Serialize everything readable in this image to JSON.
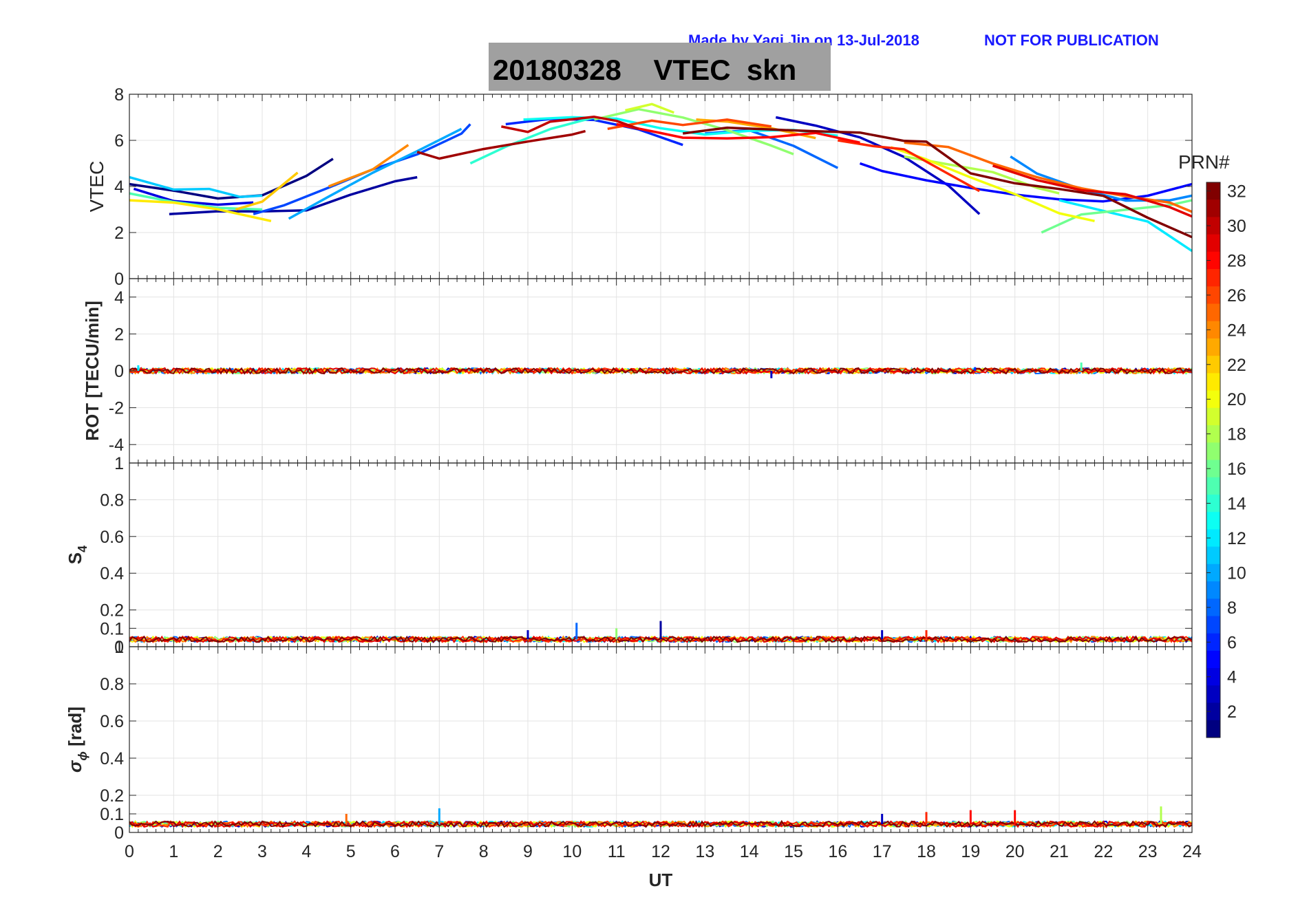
{
  "header": {
    "credit": "Made by Yaqi Jin on 13-Jul-2018",
    "notice": "NOT FOR PUBLICATION",
    "title": "20180328    VTEC  skn"
  },
  "x_label": "UT",
  "x_ticks": [
    "0",
    "1",
    "2",
    "3",
    "4",
    "5",
    "6",
    "7",
    "8",
    "9",
    "10",
    "11",
    "12",
    "13",
    "14",
    "15",
    "16",
    "17",
    "18",
    "19",
    "20",
    "21",
    "22",
    "23",
    "24"
  ],
  "colorbar": {
    "title": "PRN#",
    "ticks": [
      "2",
      "4",
      "6",
      "8",
      "10",
      "12",
      "14",
      "16",
      "18",
      "20",
      "22",
      "24",
      "26",
      "28",
      "30",
      "32"
    ],
    "range": [
      1,
      32
    ]
  },
  "panels": [
    {
      "id": "vtec",
      "ylabel": "VTEC",
      "ylim": [
        0,
        8
      ],
      "yticks": [
        "0",
        "2",
        "4",
        "6",
        "8"
      ]
    },
    {
      "id": "rot",
      "ylabel": "ROT [TECU/min]",
      "ylim": [
        -5,
        5
      ],
      "yticks": [
        "-4",
        "-2",
        "0",
        "2",
        "4"
      ]
    },
    {
      "id": "s4",
      "ylabel": "S",
      "ylabel_sub": "4",
      "ylim": [
        0,
        1
      ],
      "yticks": [
        "0",
        "0.1",
        "0.2",
        "0.4",
        "0.6",
        "0.8",
        "1"
      ]
    },
    {
      "id": "sigma",
      "ylabel": "σ",
      "ylabel_sub": "ϕ",
      "ylabel_suffix": " [rad]",
      "ylim": [
        0,
        1
      ],
      "yticks": [
        "0",
        "0.1",
        "0.2",
        "0.4",
        "0.6",
        "0.8",
        "1"
      ]
    }
  ],
  "chart_data": {
    "type": "line",
    "title": "20180328    VTEC  skn",
    "xlabel": "UT",
    "xlim": [
      0,
      24
    ],
    "grid": true,
    "colormap": "jet",
    "color_by": "PRN#",
    "colorbar_placement": "right",
    "panels": {
      "vtec": {
        "ylabel": "VTEC",
        "ylim": [
          0,
          8
        ],
        "series": [
          {
            "prn": 1,
            "x": [
              0,
              1,
              2,
              3,
              4,
              4.6
            ],
            "y": [
              4.1,
              3.8,
              3.5,
              3.6,
              4.4,
              5.2
            ]
          },
          {
            "prn": 2,
            "x": [
              0.9,
              2,
              3,
              4,
              5,
              6,
              6.5
            ],
            "y": [
              2.8,
              2.9,
              2.9,
              3.0,
              3.6,
              4.2,
              4.4
            ]
          },
          {
            "prn": 3,
            "x": [
              14.6,
              15.5,
              16.5,
              17.5,
              18.5,
              19.2
            ],
            "y": [
              7.0,
              6.6,
              6.1,
              5.3,
              4.0,
              2.8
            ]
          },
          {
            "prn": 4,
            "x": [
              0.1,
              1,
              2,
              2.8
            ],
            "y": [
              3.9,
              3.4,
              3.2,
              3.3
            ]
          },
          {
            "prn": 5,
            "x": [
              16.5,
              17,
              18,
              19,
              20,
              21,
              22,
              23,
              24
            ],
            "y": [
              5.0,
              4.7,
              4.3,
              3.9,
              3.6,
              3.4,
              3.4,
              3.6,
              4.1
            ]
          },
          {
            "prn": 6,
            "x": [
              8.5,
              9.5,
              10.5,
              11.5,
              12.5
            ],
            "y": [
              6.7,
              6.9,
              6.9,
              6.5,
              5.8
            ]
          },
          {
            "prn": 7,
            "x": [
              2.8,
              3.5,
              4.5,
              5.5,
              6.5,
              7.5,
              7.7
            ],
            "y": [
              2.8,
              3.2,
              3.9,
              4.7,
              5.4,
              6.3,
              6.7
            ]
          },
          {
            "prn": 8,
            "x": [
              13,
              14,
              15,
              16
            ],
            "y": [
              6.3,
              6.4,
              5.8,
              4.8
            ]
          },
          {
            "prn": 9,
            "x": [
              19.9,
              20.5,
              21.5,
              22.5,
              23.5,
              24
            ],
            "y": [
              5.3,
              4.6,
              3.9,
              3.4,
              3.4,
              3.6
            ]
          },
          {
            "prn": 10,
            "x": [
              3.6,
              4.5,
              5.5,
              6.5,
              7.5
            ],
            "y": [
              2.6,
              3.5,
              4.6,
              5.5,
              6.5
            ]
          },
          {
            "prn": 11,
            "x": [
              0,
              1,
              1.8,
              2.5,
              3.0
            ],
            "y": [
              4.4,
              3.9,
              3.9,
              3.5,
              3.6
            ]
          },
          {
            "prn": 12,
            "x": [
              21,
              22,
              23,
              24
            ],
            "y": [
              3.4,
              2.9,
              2.5,
              1.2
            ]
          },
          {
            "prn": 13,
            "x": [
              8.9,
              10,
              11,
              12,
              13,
              14,
              15,
              16
            ],
            "y": [
              6.9,
              7.0,
              6.9,
              6.5,
              6.3,
              6.4,
              6.5,
              6.2
            ]
          },
          {
            "prn": 14,
            "x": [
              7.7,
              8.5,
              9.5,
              10.5
            ],
            "y": [
              5.0,
              5.7,
              6.5,
              7.0
            ]
          },
          {
            "prn": 15,
            "x": [
              0,
              1,
              2,
              3
            ],
            "y": [
              3.7,
              3.3,
              3.1,
              3.0
            ]
          },
          {
            "prn": 16,
            "x": [
              20.6,
              21.5,
              22.5,
              23.5,
              24
            ],
            "y": [
              2.0,
              2.8,
              3.0,
              3.2,
              3.4
            ]
          },
          {
            "prn": 17,
            "x": [
              10.5,
              11.5,
              12.5,
              13.5,
              14.5,
              15
            ],
            "y": [
              6.9,
              7.3,
              7.0,
              6.5,
              5.8,
              5.4
            ]
          },
          {
            "prn": 18,
            "x": [
              17.5,
              18.5,
              19.5,
              20.5,
              21
            ],
            "y": [
              5.3,
              5.0,
              4.6,
              4.0,
              3.7
            ]
          },
          {
            "prn": 19,
            "x": [
              11.2,
              11.8,
              12.3
            ],
            "y": [
              7.3,
              7.6,
              7.2
            ]
          },
          {
            "prn": 20,
            "x": [
              17.2,
              18,
              19,
              20,
              21,
              21.8
            ],
            "y": [
              5.7,
              5.2,
              4.4,
              3.7,
              2.8,
              2.5
            ]
          },
          {
            "prn": 21,
            "x": [
              0,
              1,
              2,
              3.2
            ],
            "y": [
              3.4,
              3.3,
              3.0,
              2.5
            ]
          },
          {
            "prn": 22,
            "x": [
              2.4,
              3,
              3.8
            ],
            "y": [
              3.0,
              3.3,
              4.6
            ]
          },
          {
            "prn": 23,
            "x": [
              12.8,
              13.5,
              14.5,
              15.5
            ],
            "y": [
              6.9,
              6.8,
              6.5,
              6.1
            ]
          },
          {
            "prn": 24,
            "x": [
              4.5,
              5.5,
              6.3
            ],
            "y": [
              4.0,
              4.8,
              5.8
            ]
          },
          {
            "prn": 25,
            "x": [
              17.5,
              18.5,
              19.5,
              20.5,
              21.5,
              22.5,
              23.5,
              24
            ],
            "y": [
              5.9,
              5.7,
              5.0,
              4.4,
              3.9,
              3.6,
              3.3,
              2.9
            ]
          },
          {
            "prn": 26,
            "x": [
              10.8,
              11.8,
              12.5,
              13.5,
              14.5
            ],
            "y": [
              6.5,
              6.8,
              6.7,
              6.9,
              6.6
            ]
          },
          {
            "prn": 27,
            "x": [
              16,
              16.8,
              17.5,
              18.5,
              19.2
            ],
            "y": [
              6.0,
              5.7,
              5.6,
              4.6,
              3.8
            ]
          },
          {
            "prn": 28,
            "x": [
              11,
              12,
              12.5,
              13.5,
              14.5,
              15.5,
              16.5
            ],
            "y": [
              6.7,
              6.3,
              6.1,
              6.1,
              6.1,
              6.3,
              5.9
            ]
          },
          {
            "prn": 29,
            "x": [
              19.5,
              20.5,
              21.5,
              22.5,
              23.5,
              24
            ],
            "y": [
              4.9,
              4.3,
              3.8,
              3.6,
              3.1,
              2.7
            ]
          },
          {
            "prn": 30,
            "x": [
              8.4,
              9,
              9.5,
              10.5,
              11,
              11.5
            ],
            "y": [
              6.6,
              6.4,
              6.8,
              7.0,
              6.8,
              6.5
            ]
          },
          {
            "prn": 31,
            "x": [
              6.5,
              7,
              8,
              9,
              10,
              10.3
            ],
            "y": [
              5.5,
              5.2,
              5.6,
              6.0,
              6.2,
              6.4
            ]
          },
          {
            "prn": 32,
            "x": [
              12.5,
              13.5,
              14.5,
              15.5,
              16.5,
              17.5,
              18,
              19,
              20,
              21,
              22,
              23,
              24
            ],
            "y": [
              6.3,
              6.6,
              6.5,
              6.4,
              6.3,
              6.0,
              5.9,
              4.6,
              4.1,
              3.9,
              3.6,
              2.7,
              1.8
            ]
          }
        ]
      },
      "rot": {
        "ylabel": "ROT [TECU/min]",
        "ylim": [
          -5,
          5
        ],
        "baseline": 0,
        "noise_amplitude": 0.15,
        "spikes": [
          {
            "x": 14.5,
            "y": -0.4,
            "prn": 3
          },
          {
            "x": 19.1,
            "y": 0.2,
            "prn": 6
          },
          {
            "x": 21.5,
            "y": 0.45,
            "prn": 15
          },
          {
            "x": 0.2,
            "y": 0.3,
            "prn": 12
          }
        ]
      },
      "s4": {
        "ylabel": "S4",
        "ylim": [
          0,
          1
        ],
        "baseline": 0.04,
        "noise_amplitude": 0.015,
        "spikes": [
          {
            "x": 10.1,
            "y": 0.13,
            "prn": 8
          },
          {
            "x": 12.0,
            "y": 0.14,
            "prn": 2
          },
          {
            "x": 11.0,
            "y": 0.1,
            "prn": 17
          },
          {
            "x": 17.0,
            "y": 0.09,
            "prn": 3
          },
          {
            "x": 18.0,
            "y": 0.09,
            "prn": 27
          },
          {
            "x": 9.0,
            "y": 0.09,
            "prn": 3
          }
        ]
      },
      "sigma": {
        "ylabel": "σϕ [rad]",
        "ylim": [
          0,
          1
        ],
        "baseline": 0.045,
        "noise_amplitude": 0.015,
        "spikes": [
          {
            "x": 7.0,
            "y": 0.13,
            "prn": 10
          },
          {
            "x": 17.0,
            "y": 0.1,
            "prn": 3
          },
          {
            "x": 18.0,
            "y": 0.11,
            "prn": 27
          },
          {
            "x": 19.0,
            "y": 0.12,
            "prn": 28
          },
          {
            "x": 20.0,
            "y": 0.12,
            "prn": 28
          },
          {
            "x": 23.3,
            "y": 0.14,
            "prn": 18
          },
          {
            "x": 4.9,
            "y": 0.1,
            "prn": 25
          }
        ]
      }
    }
  }
}
